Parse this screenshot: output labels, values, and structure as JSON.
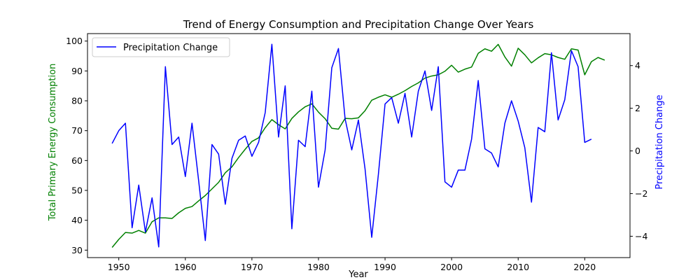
{
  "chart_data": {
    "type": "line",
    "title": "Trend of Energy Consumption and Precipitation Change Over Years",
    "xlabel": "Year",
    "ylabel_left": "Total Primary Energy Consumption",
    "ylabel_right": "Precipitation Change",
    "xlim": [
      1945.3,
      2026.8
    ],
    "ylim_left": [
      27.5,
      102.5
    ],
    "ylim_right": [
      -5.0,
      5.5
    ],
    "x_ticks": [
      1950,
      1960,
      1970,
      1980,
      1990,
      2000,
      2010,
      2020
    ],
    "y_left_ticks": [
      30,
      40,
      50,
      60,
      70,
      80,
      90,
      100
    ],
    "y_right_ticks": [
      -4,
      -2,
      0,
      2,
      4
    ],
    "grid": false,
    "legend": {
      "placement": "top-left",
      "entries": [
        "Precipitation Change"
      ]
    },
    "colors": {
      "left_series": "#008000",
      "right_series": "#0000ff",
      "left_axis_label": "#008000",
      "right_axis_label": "#0000ff"
    },
    "series": [
      {
        "axis": "left",
        "x": [
          1949,
          1950,
          1951,
          1952,
          1953,
          1954,
          1955,
          1956,
          1957,
          1958,
          1959,
          1960,
          1961,
          1962,
          1963,
          1964,
          1965,
          1966,
          1967,
          1968,
          1969,
          1970,
          1971,
          1972,
          1973,
          1974,
          1975,
          1976,
          1977,
          1978,
          1979,
          1980,
          1981,
          1982,
          1983,
          1984,
          1985,
          1986,
          1987,
          1988,
          1989,
          1990,
          1991,
          1992,
          1993,
          1994,
          1995,
          1996,
          1997,
          1998,
          1999,
          2000,
          2001,
          2002,
          2003,
          2004,
          2005,
          2006,
          2007,
          2008,
          2009,
          2010,
          2011,
          2012,
          2013,
          2014,
          2015,
          2016,
          2017,
          2018,
          2019,
          2020,
          2021,
          2022,
          2023
        ],
        "values": [
          30.9,
          33.6,
          35.9,
          35.7,
          36.6,
          35.7,
          39.5,
          40.8,
          40.8,
          40.6,
          42.5,
          44.0,
          44.6,
          46.5,
          48.3,
          50.5,
          52.7,
          55.9,
          57.9,
          61.0,
          63.8,
          66.4,
          67.6,
          71.0,
          73.7,
          72.0,
          70.6,
          74.1,
          76.3,
          78.0,
          79.0,
          76.2,
          74.0,
          70.8,
          70.5,
          74.1,
          74.0,
          74.3,
          76.7,
          80.2,
          81.2,
          82.0,
          81.2,
          82.2,
          83.4,
          84.8,
          86.0,
          87.6,
          88.3,
          88.7,
          89.9,
          91.9,
          89.6,
          90.6,
          91.3,
          95.9,
          97.4,
          96.6,
          98.9,
          94.7,
          91.6,
          97.6,
          95.4,
          92.7,
          94.4,
          95.8,
          95.4,
          94.5,
          93.9,
          97.4,
          97.0,
          88.7,
          93.1,
          94.5,
          93.6
        ]
      },
      {
        "axis": "right",
        "name": "Precipitation Change",
        "x": [
          1949,
          1950,
          1951,
          1952,
          1953,
          1954,
          1955,
          1956,
          1957,
          1958,
          1959,
          1960,
          1961,
          1962,
          1963,
          1964,
          1965,
          1966,
          1967,
          1968,
          1969,
          1970,
          1971,
          1972,
          1973,
          1974,
          1975,
          1976,
          1977,
          1978,
          1979,
          1980,
          1981,
          1982,
          1983,
          1984,
          1985,
          1986,
          1987,
          1988,
          1989,
          1990,
          1991,
          1992,
          1993,
          1994,
          1995,
          1996,
          1997,
          1998,
          1999,
          2000,
          2001,
          2002,
          2003,
          2004,
          2005,
          2006,
          2007,
          2008,
          2009,
          2010,
          2011,
          2012,
          2013,
          2014,
          2015,
          2016,
          2017,
          2018,
          2019,
          2020,
          2021
        ],
        "values": [
          0.35,
          0.95,
          1.3,
          -3.6,
          -1.6,
          -3.8,
          -2.2,
          -4.5,
          3.95,
          0.3,
          0.65,
          -1.2,
          1.3,
          -1.4,
          -4.2,
          0.3,
          -0.15,
          -2.5,
          -0.35,
          0.5,
          0.7,
          -0.25,
          0.4,
          1.8,
          5.0,
          0.65,
          3.05,
          -3.65,
          0.5,
          0.2,
          2.8,
          -1.7,
          0.05,
          3.9,
          4.8,
          1.5,
          0.05,
          1.45,
          -0.85,
          -4.05,
          -1.1,
          2.2,
          2.5,
          1.3,
          2.7,
          0.65,
          2.8,
          3.75,
          1.9,
          3.95,
          -1.45,
          -1.7,
          -0.9,
          -0.9,
          0.55,
          3.3,
          0.1,
          -0.1,
          -0.75,
          1.3,
          2.35,
          1.4,
          0.15,
          -2.4,
          1.1,
          0.9,
          4.6,
          1.45,
          2.4,
          4.7,
          3.95,
          0.4,
          0.55
        ]
      }
    ]
  }
}
